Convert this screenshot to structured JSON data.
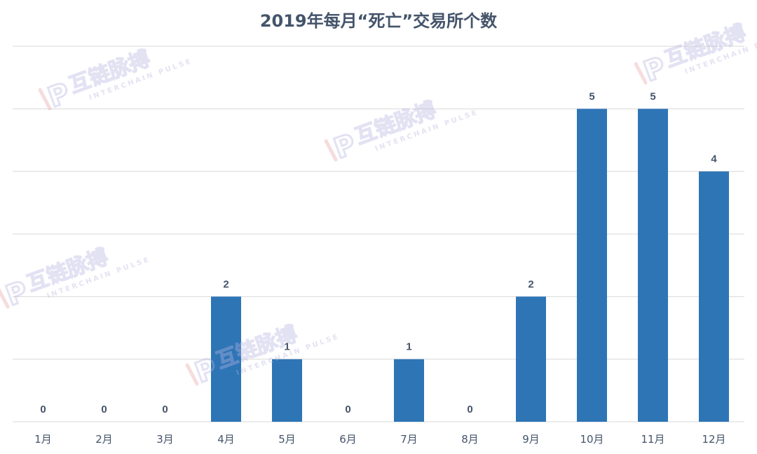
{
  "chart_data": {
    "type": "bar",
    "title": "2019年每月“死亡”交易所个数",
    "categories": [
      "1月",
      "2月",
      "3月",
      "4月",
      "5月",
      "6月",
      "7月",
      "8月",
      "9月",
      "10月",
      "11月",
      "12月"
    ],
    "values": [
      0,
      0,
      0,
      2,
      1,
      0,
      1,
      0,
      2,
      5,
      5,
      4
    ],
    "ylim": [
      0,
      6
    ],
    "ytick_step": 1,
    "grid": true,
    "data_labels": true,
    "bar_color": "#2e75b6",
    "label_color": "#44546a",
    "grid_color": "#d9d9d9"
  },
  "watermark": {
    "brand": "互链脉搏",
    "sub": "INTERCHAIN PULSE",
    "logo_letter": "P",
    "color_a": "#e8a7a7",
    "color_b": "#b8b4e0"
  }
}
